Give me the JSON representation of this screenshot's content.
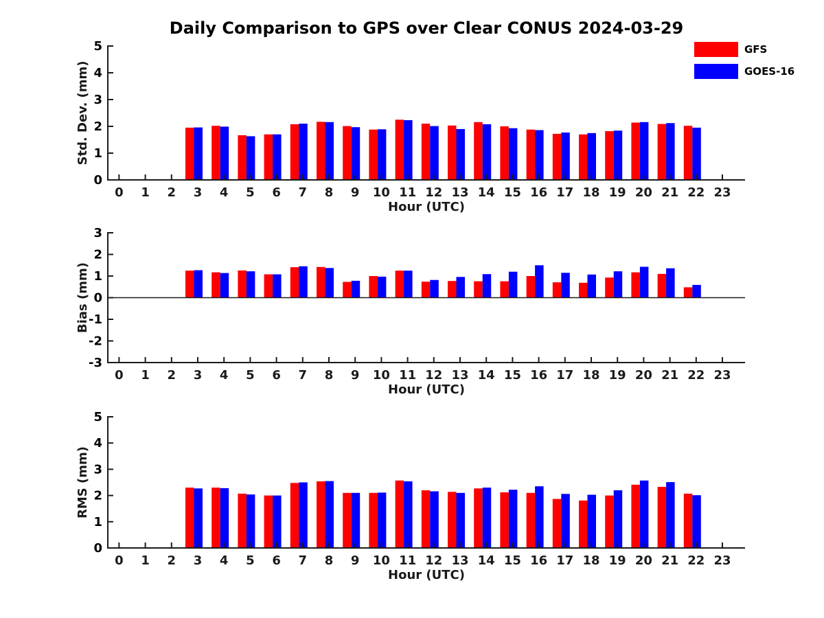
{
  "title": "Daily Comparison to GPS over Clear CONUS 2024-03-29",
  "legend": {
    "items": [
      {
        "label": "GFS",
        "color": "#ff0000"
      },
      {
        "label": "GOES-16",
        "color": "#0000ff"
      }
    ]
  },
  "colors": {
    "bar_gfs": "#ff0000",
    "bar_goes16": "#0000ff",
    "axis": "#1a1a1a",
    "background": "#ffffff"
  },
  "chart_data": [
    {
      "type": "bar",
      "title": "",
      "ylabel": "Std. Dev. (mm)",
      "xlabel": "Hour (UTC)",
      "ylim": [
        0,
        5
      ],
      "yticks": [
        0,
        1,
        2,
        3,
        4,
        5
      ],
      "xticks": [
        0,
        1,
        2,
        3,
        4,
        5,
        6,
        7,
        8,
        9,
        10,
        11,
        12,
        13,
        14,
        15,
        16,
        17,
        18,
        19,
        20,
        21,
        22,
        23
      ],
      "x": [
        3,
        4,
        5,
        6,
        7,
        8,
        9,
        10,
        11,
        12,
        13,
        14,
        15,
        16,
        17,
        18,
        19,
        20,
        21,
        22
      ],
      "zero_line": false,
      "legend_position": "upper-right-outside",
      "grid": false,
      "series": [
        {
          "name": "GFS",
          "color": "#ff0000",
          "values": [
            1.95,
            2.02,
            1.67,
            1.7,
            2.08,
            2.17,
            2.01,
            1.88,
            2.25,
            2.1,
            2.03,
            2.16,
            2.0,
            1.88,
            1.72,
            1.7,
            1.82,
            2.14,
            2.09,
            2.02
          ]
        },
        {
          "name": "GOES-16",
          "color": "#0000ff",
          "values": [
            1.96,
            1.99,
            1.63,
            1.7,
            2.1,
            2.16,
            1.97,
            1.89,
            2.23,
            2.01,
            1.9,
            2.08,
            1.93,
            1.86,
            1.77,
            1.75,
            1.84,
            2.16,
            2.12,
            1.95
          ]
        }
      ]
    },
    {
      "type": "bar",
      "title": "",
      "ylabel": "Bias (mm)",
      "xlabel": "Hour (UTC)",
      "ylim": [
        -3,
        3
      ],
      "yticks": [
        -3,
        -2,
        -1,
        0,
        1,
        2,
        3
      ],
      "xticks": [
        0,
        1,
        2,
        3,
        4,
        5,
        6,
        7,
        8,
        9,
        10,
        11,
        12,
        13,
        14,
        15,
        16,
        17,
        18,
        19,
        20,
        21,
        22,
        23
      ],
      "x": [
        3,
        4,
        5,
        6,
        7,
        8,
        9,
        10,
        11,
        12,
        13,
        14,
        15,
        16,
        17,
        18,
        19,
        20,
        21,
        22
      ],
      "zero_line": true,
      "grid": false,
      "series": [
        {
          "name": "GFS",
          "color": "#ff0000",
          "values": [
            1.25,
            1.17,
            1.26,
            1.08,
            1.41,
            1.42,
            0.73,
            1.0,
            1.25,
            0.74,
            0.77,
            0.76,
            0.76,
            1.0,
            0.71,
            0.69,
            0.93,
            1.17,
            1.1,
            0.48
          ]
        },
        {
          "name": "GOES-16",
          "color": "#0000ff",
          "values": [
            1.27,
            1.14,
            1.22,
            1.08,
            1.45,
            1.37,
            0.78,
            0.97,
            1.25,
            0.82,
            0.96,
            1.09,
            1.2,
            1.5,
            1.15,
            1.07,
            1.22,
            1.43,
            1.36,
            0.59
          ]
        }
      ]
    },
    {
      "type": "bar",
      "title": "",
      "ylabel": "RMS (mm)",
      "xlabel": "Hour (UTC)",
      "ylim": [
        0,
        5
      ],
      "yticks": [
        0,
        1,
        2,
        3,
        4,
        5
      ],
      "xticks": [
        0,
        1,
        2,
        3,
        4,
        5,
        6,
        7,
        8,
        9,
        10,
        11,
        12,
        13,
        14,
        15,
        16,
        17,
        18,
        19,
        20,
        21,
        22,
        23
      ],
      "x": [
        3,
        4,
        5,
        6,
        7,
        8,
        9,
        10,
        11,
        12,
        13,
        14,
        15,
        16,
        17,
        18,
        19,
        20,
        21,
        22
      ],
      "zero_line": false,
      "grid": false,
      "series": [
        {
          "name": "GFS",
          "color": "#ff0000",
          "values": [
            2.3,
            2.3,
            2.07,
            2.0,
            2.48,
            2.54,
            2.1,
            2.1,
            2.57,
            2.2,
            2.14,
            2.27,
            2.12,
            2.1,
            1.87,
            1.81,
            2.0,
            2.41,
            2.33,
            2.07
          ]
        },
        {
          "name": "GOES-16",
          "color": "#0000ff",
          "values": [
            2.27,
            2.28,
            2.04,
            2.0,
            2.5,
            2.55,
            2.1,
            2.11,
            2.54,
            2.16,
            2.1,
            2.3,
            2.22,
            2.35,
            2.06,
            2.03,
            2.2,
            2.57,
            2.51,
            2.01
          ]
        }
      ]
    }
  ]
}
